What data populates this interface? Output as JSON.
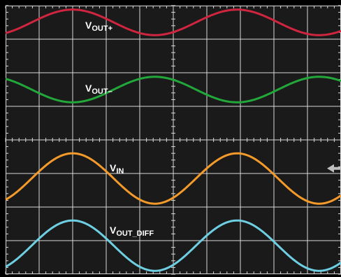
{
  "chart_data": {
    "type": "line",
    "title": "",
    "xlabel": "",
    "ylabel": "",
    "grid": true,
    "divisions": {
      "x": 10,
      "y": 8
    },
    "x_range_div": [
      0,
      10
    ],
    "series": [
      {
        "label_main": "V",
        "label_sub": "OUT+",
        "color": "#d0253f",
        "center_div": 7.5,
        "amplitude_div": 0.38,
        "period_div": 4.9,
        "phase_cycles": 0.0
      },
      {
        "label_main": "V",
        "label_sub": "OUT–",
        "color": "#22a83a",
        "center_div": 5.5,
        "amplitude_div": 0.38,
        "period_div": 4.9,
        "phase_cycles": 0.5
      },
      {
        "label_main": "V",
        "label_sub": "IN",
        "color": "#f39a2a",
        "center_div": 2.85,
        "amplitude_div": 0.75,
        "period_div": 4.9,
        "phase_cycles": 0.0
      },
      {
        "label_main": "V",
        "label_sub": "OUT_DIFF",
        "color": "#6ecfe3",
        "center_div": 0.85,
        "amplitude_div": 0.75,
        "period_div": 4.9,
        "phase_cycles": 0.0
      }
    ],
    "trigger_marker": {
      "color": "#bfbfbf",
      "level_div": 3.15
    }
  },
  "colors": {
    "screen": "#1a1a1a",
    "bezel": "#000000",
    "grid": "#d8d8d8",
    "label_text": "#ffffff"
  }
}
